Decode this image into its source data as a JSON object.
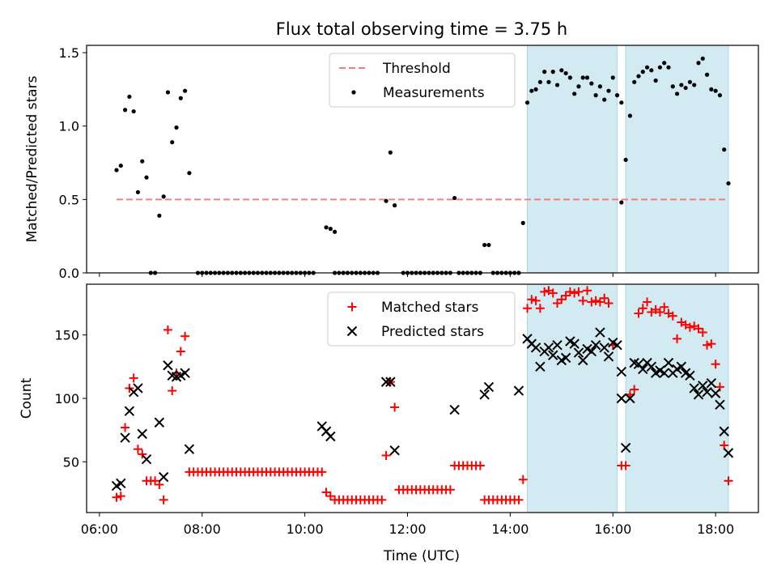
{
  "figure_title": "Flux total observing time = 3.75 h",
  "xlabel": "Time (UTC)",
  "x_ticks": [
    "06:00",
    "08:00",
    "10:00",
    "12:00",
    "14:00",
    "16:00",
    "18:00"
  ],
  "colors": {
    "threshold": "#f08080",
    "measurements": "#000000",
    "matched": "#ff0000",
    "predicted": "#000000",
    "observing_band": "#add8e6"
  },
  "chart_data": [
    {
      "type": "scatter",
      "ylabel": "Matched/Predicted stars",
      "xlim": [
        "05:45",
        "18:50"
      ],
      "ylim": [
        0,
        1.55
      ],
      "y_ticks": [
        "0.0",
        "0.5",
        "1.0",
        "1.5"
      ],
      "legend": {
        "placement": "upper center",
        "entries": [
          "Threshold",
          "Measurements"
        ]
      },
      "observing_windows": [
        [
          "14:20",
          "16:05"
        ],
        [
          "16:15",
          "18:15"
        ]
      ],
      "threshold": {
        "name": "Threshold",
        "value": 0.5,
        "x_range": [
          "06:20",
          "18:15"
        ]
      },
      "series": [
        {
          "name": "Measurements",
          "points": [
            [
              "06:20",
              0.7
            ],
            [
              "06:25",
              0.73
            ],
            [
              "06:30",
              1.11
            ],
            [
              "06:35",
              1.2
            ],
            [
              "06:40",
              1.1
            ],
            [
              "06:45",
              0.55
            ],
            [
              "06:50",
              0.76
            ],
            [
              "06:55",
              0.65
            ],
            [
              "07:00",
              0.0
            ],
            [
              "07:05",
              0.0
            ],
            [
              "07:10",
              0.39
            ],
            [
              "07:15",
              0.52
            ],
            [
              "07:20",
              1.23
            ],
            [
              "07:25",
              0.89
            ],
            [
              "07:30",
              0.99
            ],
            [
              "07:35",
              1.19
            ],
            [
              "07:40",
              1.24
            ],
            [
              "07:45",
              0.68
            ],
            [
              "10:25",
              0.31
            ],
            [
              "10:30",
              0.3
            ],
            [
              "10:35",
              0.28
            ],
            [
              "11:35",
              0.49
            ],
            [
              "11:40",
              0.82
            ],
            [
              "11:45",
              0.46
            ],
            [
              "12:55",
              0.51
            ],
            [
              "13:30",
              0.19
            ],
            [
              "13:35",
              0.19
            ],
            [
              "14:15",
              0.34
            ],
            [
              "14:20",
              1.16
            ],
            [
              "14:25",
              1.24
            ],
            [
              "14:30",
              1.25
            ],
            [
              "14:35",
              1.3
            ],
            [
              "14:40",
              1.37
            ],
            [
              "14:45",
              1.3
            ],
            [
              "14:50",
              1.37
            ],
            [
              "14:55",
              1.28
            ],
            [
              "15:00",
              1.38
            ],
            [
              "15:05",
              1.36
            ],
            [
              "15:10",
              1.33
            ],
            [
              "15:15",
              1.22
            ],
            [
              "15:20",
              1.27
            ],
            [
              "15:25",
              1.33
            ],
            [
              "15:30",
              1.33
            ],
            [
              "15:35",
              1.29
            ],
            [
              "15:40",
              1.21
            ],
            [
              "15:45",
              1.27
            ],
            [
              "15:50",
              1.18
            ],
            [
              "15:55",
              1.24
            ],
            [
              "16:00",
              1.33
            ],
            [
              "16:05",
              1.21
            ],
            [
              "16:10",
              1.16
            ],
            [
              "16:10",
              0.48
            ],
            [
              "16:15",
              0.77
            ],
            [
              "16:20",
              1.07
            ],
            [
              "16:25",
              1.3
            ],
            [
              "16:30",
              1.34
            ],
            [
              "16:35",
              1.37
            ],
            [
              "16:40",
              1.4
            ],
            [
              "16:45",
              1.38
            ],
            [
              "16:50",
              1.31
            ],
            [
              "16:55",
              1.4
            ],
            [
              "17:00",
              1.43
            ],
            [
              "17:05",
              1.4
            ],
            [
              "17:10",
              1.27
            ],
            [
              "17:15",
              1.22
            ],
            [
              "17:20",
              1.28
            ],
            [
              "17:25",
              1.26
            ],
            [
              "17:30",
              1.3
            ],
            [
              "17:35",
              1.28
            ],
            [
              "17:40",
              1.43
            ],
            [
              "17:45",
              1.46
            ],
            [
              "17:50",
              1.35
            ],
            [
              "17:55",
              1.25
            ],
            [
              "18:00",
              1.24
            ],
            [
              "18:05",
              1.21
            ],
            [
              "18:10",
              0.84
            ],
            [
              "18:15",
              0.61
            ]
          ],
          "zero_runs": [
            {
              "from": "07:55",
              "to": "10:10",
              "step_min": 5
            },
            {
              "from": "10:35",
              "to": "11:25",
              "step_min": 5
            },
            {
              "from": "11:55",
              "to": "12:50",
              "step_min": 5
            },
            {
              "from": "13:00",
              "to": "13:25",
              "step_min": 5
            },
            {
              "from": "13:40",
              "to": "14:10",
              "step_min": 5
            }
          ]
        }
      ]
    },
    {
      "type": "scatter",
      "ylabel": "Count",
      "xlim": [
        "05:45",
        "18:50"
      ],
      "ylim": [
        10,
        190
      ],
      "y_ticks": [
        "50",
        "100",
        "150"
      ],
      "legend": {
        "placement": "upper center",
        "entries": [
          "Matched stars",
          "Predicted stars"
        ]
      },
      "observing_windows": [
        [
          "14:20",
          "16:05"
        ],
        [
          "16:15",
          "18:15"
        ]
      ],
      "series": [
        {
          "name": "Matched stars",
          "points": [
            [
              "06:20",
              22
            ],
            [
              "06:25",
              23
            ],
            [
              "06:30",
              77
            ],
            [
              "06:35",
              108
            ],
            [
              "06:40",
              116
            ],
            [
              "06:45",
              60
            ],
            [
              "06:50",
              56
            ],
            [
              "06:55",
              35
            ],
            [
              "07:00",
              35
            ],
            [
              "07:05",
              35
            ],
            [
              "07:10",
              32
            ],
            [
              "07:15",
              20
            ],
            [
              "07:20",
              154
            ],
            [
              "07:25",
              106
            ],
            [
              "07:30",
              120
            ],
            [
              "07:35",
              137
            ],
            [
              "07:40",
              149
            ],
            [
              "10:20",
              42
            ],
            [
              "10:25",
              26
            ],
            [
              "10:30",
              23
            ],
            [
              "11:35",
              55
            ],
            [
              "11:40",
              113
            ],
            [
              "11:45",
              93
            ],
            [
              "14:15",
              36
            ],
            [
              "14:20",
              171
            ],
            [
              "14:25",
              178
            ],
            [
              "14:30",
              177
            ],
            [
              "14:35",
              171
            ],
            [
              "14:40",
              184
            ],
            [
              "14:45",
              185
            ],
            [
              "14:50",
              183
            ],
            [
              "14:55",
              175
            ],
            [
              "15:00",
              178
            ],
            [
              "15:05",
              181
            ],
            [
              "15:10",
              184
            ],
            [
              "15:15",
              183
            ],
            [
              "15:20",
              184
            ],
            [
              "15:25",
              177
            ],
            [
              "15:30",
              185
            ],
            [
              "15:35",
              176
            ],
            [
              "15:40",
              177
            ],
            [
              "15:45",
              176
            ],
            [
              "15:50",
              179
            ],
            [
              "15:55",
              175
            ],
            [
              "16:00",
              142
            ],
            [
              "16:10",
              47
            ],
            [
              "16:15",
              47
            ],
            [
              "16:20",
              103
            ],
            [
              "16:25",
              107
            ],
            [
              "16:30",
              167
            ],
            [
              "16:35",
              171
            ],
            [
              "16:40",
              176
            ],
            [
              "16:45",
              168
            ],
            [
              "16:50",
              170
            ],
            [
              "16:55",
              168
            ],
            [
              "17:00",
              172
            ],
            [
              "17:05",
              167
            ],
            [
              "17:10",
              165
            ],
            [
              "17:15",
              147
            ],
            [
              "17:20",
              160
            ],
            [
              "17:25",
              158
            ],
            [
              "17:30",
              156
            ],
            [
              "17:35",
              157
            ],
            [
              "17:40",
              155
            ],
            [
              "17:45",
              152
            ],
            [
              "17:50",
              142
            ],
            [
              "17:55",
              143
            ],
            [
              "18:00",
              127
            ],
            [
              "18:05",
              109
            ],
            [
              "18:10",
              63
            ],
            [
              "18:15",
              35
            ]
          ],
          "flat_runs": [
            {
              "from": "07:45",
              "to": "10:15",
              "value": 42,
              "step_min": 5
            },
            {
              "from": "10:35",
              "to": "11:30",
              "value": 20,
              "step_min": 5
            },
            {
              "from": "11:50",
              "to": "12:50",
              "value": 28,
              "step_min": 5
            },
            {
              "from": "12:55",
              "to": "13:25",
              "value": 47,
              "step_min": 5
            },
            {
              "from": "13:30",
              "to": "14:10",
              "value": 20,
              "step_min": 5
            }
          ]
        },
        {
          "name": "Predicted stars",
          "points": [
            [
              "06:20",
              31
            ],
            [
              "06:25",
              33
            ],
            [
              "06:30",
              69
            ],
            [
              "06:35",
              90
            ],
            [
              "06:40",
              105
            ],
            [
              "06:45",
              108
            ],
            [
              "06:50",
              72
            ],
            [
              "06:55",
              52
            ],
            [
              "07:10",
              81
            ],
            [
              "07:15",
              38
            ],
            [
              "07:20",
              126
            ],
            [
              "07:25",
              118
            ],
            [
              "07:30",
              117
            ],
            [
              "07:35",
              118
            ],
            [
              "07:40",
              120
            ],
            [
              "07:45",
              60
            ],
            [
              "10:20",
              78
            ],
            [
              "10:25",
              74
            ],
            [
              "10:30",
              70
            ],
            [
              "11:35",
              113
            ],
            [
              "11:40",
              113
            ],
            [
              "11:45",
              59
            ],
            [
              "12:55",
              91
            ],
            [
              "13:30",
              103
            ],
            [
              "13:35",
              109
            ],
            [
              "14:10",
              106
            ],
            [
              "14:20",
              147
            ],
            [
              "14:25",
              143
            ],
            [
              "14:30",
              140
            ],
            [
              "14:35",
              125
            ],
            [
              "14:40",
              137
            ],
            [
              "14:45",
              140
            ],
            [
              "14:50",
              134
            ],
            [
              "14:55",
              142
            ],
            [
              "15:00",
              130
            ],
            [
              "15:05",
              132
            ],
            [
              "15:10",
              145
            ],
            [
              "15:15",
              143
            ],
            [
              "15:20",
              136
            ],
            [
              "15:25",
              130
            ],
            [
              "15:30",
              139
            ],
            [
              "15:35",
              137
            ],
            [
              "15:40",
              142
            ],
            [
              "15:45",
              152
            ],
            [
              "15:50",
              140
            ],
            [
              "15:55",
              133
            ],
            [
              "16:00",
              144
            ],
            [
              "16:05",
              142
            ],
            [
              "16:10",
              121
            ],
            [
              "16:10",
              100
            ],
            [
              "16:15",
              61
            ],
            [
              "16:20",
              100
            ],
            [
              "16:25",
              128
            ],
            [
              "16:30",
              127
            ],
            [
              "16:35",
              123
            ],
            [
              "16:40",
              128
            ],
            [
              "16:45",
              125
            ],
            [
              "16:50",
              120
            ],
            [
              "16:55",
              122
            ],
            [
              "17:00",
              120
            ],
            [
              "17:05",
              128
            ],
            [
              "17:10",
              120
            ],
            [
              "17:15",
              123
            ],
            [
              "17:20",
              125
            ],
            [
              "17:25",
              120
            ],
            [
              "17:30",
              118
            ],
            [
              "17:35",
              108
            ],
            [
              "17:40",
              103
            ],
            [
              "17:45",
              110
            ],
            [
              "17:50",
              105
            ],
            [
              "17:55",
              112
            ],
            [
              "18:00",
              104
            ],
            [
              "18:05",
              95
            ],
            [
              "18:10",
              74
            ],
            [
              "18:15",
              57
            ]
          ]
        }
      ]
    }
  ]
}
